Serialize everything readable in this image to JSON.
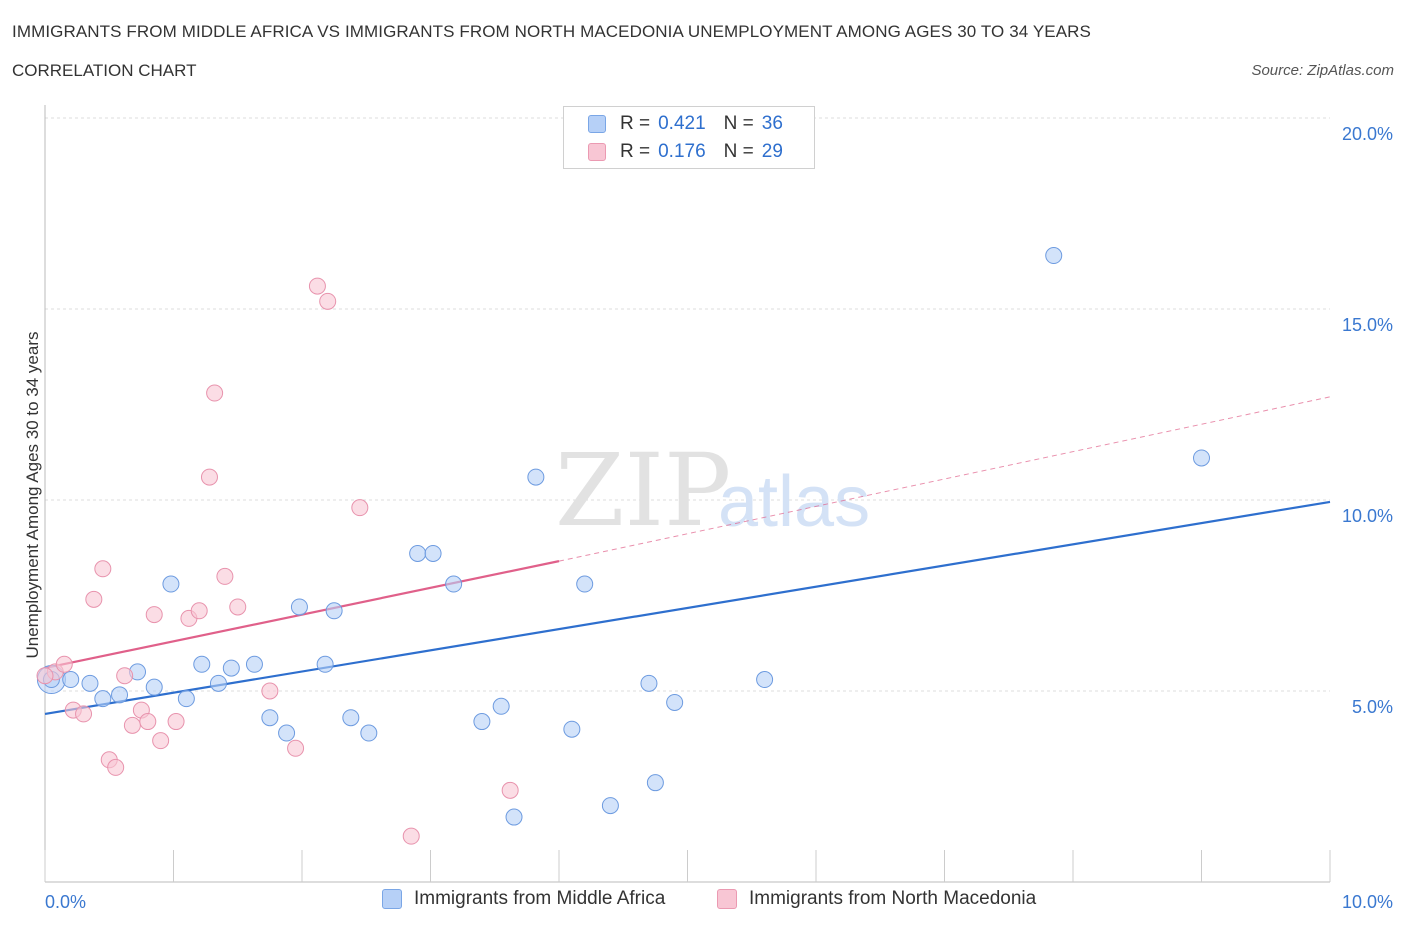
{
  "header": {
    "title": "IMMIGRANTS FROM MIDDLE AFRICA VS IMMIGRANTS FROM NORTH MACEDONIA UNEMPLOYMENT AMONG AGES 30 TO 34 YEARS",
    "subtitle": "CORRELATION CHART",
    "source": "Source: ZipAtlas.com"
  },
  "watermark": {
    "zip": "ZIP",
    "atlas": "atlas"
  },
  "legend": {
    "r_label": "R =",
    "n_label": "N =",
    "blue": {
      "r": "0.421",
      "n": "36"
    },
    "pink": {
      "r": "0.176",
      "n": "29"
    }
  },
  "colors": {
    "blue_fill": "#b6d0f7",
    "blue_stroke": "#6d9be0",
    "blue_line": "#2e6fce",
    "pink_fill": "#f8c6d4",
    "pink_stroke": "#e893ad",
    "pink_line": "#e0608a",
    "grid": "#dddddd",
    "axis_text": "#3a78d0"
  },
  "chart_data": {
    "type": "scatter",
    "title": "IMMIGRANTS FROM MIDDLE AFRICA VS IMMIGRANTS FROM NORTH MACEDONIA UNEMPLOYMENT AMONG AGES 30 TO 34 YEARS",
    "xlabel": "",
    "ylabel": "Unemployment Among Ages 30 to 34 years",
    "xlim": [
      0,
      10
    ],
    "ylim": [
      0,
      20
    ],
    "x_tick_labels": [
      "0.0%",
      "10.0%"
    ],
    "y_ticks": [
      5,
      10,
      15,
      20
    ],
    "y_tick_labels": [
      "5.0%",
      "10.0%",
      "15.0%",
      "20.0%"
    ],
    "legend_position": "top-center",
    "series": [
      {
        "name": "Immigrants from Middle Africa",
        "color": "blue",
        "r": 0.421,
        "n": 36,
        "trend": {
          "x": [
            0,
            10
          ],
          "y": [
            4.4,
            9.95
          ]
        },
        "points": [
          [
            0.05,
            5.3
          ],
          [
            0.2,
            5.3
          ],
          [
            0.35,
            5.2
          ],
          [
            0.45,
            4.8
          ],
          [
            0.58,
            4.9
          ],
          [
            0.72,
            5.5
          ],
          [
            0.85,
            5.1
          ],
          [
            0.98,
            7.8
          ],
          [
            1.1,
            4.8
          ],
          [
            1.22,
            5.7
          ],
          [
            1.35,
            5.2
          ],
          [
            1.45,
            5.6
          ],
          [
            1.63,
            5.7
          ],
          [
            1.75,
            4.3
          ],
          [
            1.88,
            3.9
          ],
          [
            1.98,
            7.2
          ],
          [
            2.18,
            5.7
          ],
          [
            2.25,
            7.1
          ],
          [
            2.38,
            4.3
          ],
          [
            2.52,
            3.9
          ],
          [
            2.9,
            8.6
          ],
          [
            3.02,
            8.6
          ],
          [
            3.18,
            7.8
          ],
          [
            3.4,
            4.2
          ],
          [
            3.55,
            4.6
          ],
          [
            3.65,
            1.7
          ],
          [
            3.82,
            10.6
          ],
          [
            4.1,
            4.0
          ],
          [
            4.2,
            7.8
          ],
          [
            4.4,
            2.0
          ],
          [
            4.7,
            5.2
          ],
          [
            4.75,
            2.6
          ],
          [
            4.9,
            4.7
          ],
          [
            5.6,
            5.3
          ],
          [
            7.85,
            16.4
          ],
          [
            9.0,
            11.1
          ]
        ]
      },
      {
        "name": "Immigrants from North Macedonia",
        "color": "pink",
        "r": 0.176,
        "n": 29,
        "trend": {
          "x": [
            0,
            4.0
          ],
          "y": [
            5.6,
            8.4
          ]
        },
        "trend_extension": {
          "x": [
            4.0,
            10
          ],
          "y": [
            8.4,
            12.7
          ]
        },
        "points": [
          [
            0.08,
            5.5
          ],
          [
            0.15,
            5.7
          ],
          [
            0.22,
            4.5
          ],
          [
            0.3,
            4.4
          ],
          [
            0.38,
            7.4
          ],
          [
            0.45,
            8.2
          ],
          [
            0.5,
            3.2
          ],
          [
            0.55,
            3.0
          ],
          [
            0.62,
            5.4
          ],
          [
            0.68,
            4.1
          ],
          [
            0.75,
            4.5
          ],
          [
            0.8,
            4.2
          ],
          [
            0.85,
            7.0
          ],
          [
            0.9,
            3.7
          ],
          [
            1.02,
            4.2
          ],
          [
            1.12,
            6.9
          ],
          [
            1.2,
            7.1
          ],
          [
            1.28,
            10.6
          ],
          [
            1.32,
            12.8
          ],
          [
            1.4,
            8.0
          ],
          [
            1.5,
            7.2
          ],
          [
            1.75,
            5.0
          ],
          [
            1.95,
            3.5
          ],
          [
            2.12,
            15.6
          ],
          [
            2.2,
            15.2
          ],
          [
            2.45,
            9.8
          ],
          [
            2.85,
            1.2
          ],
          [
            3.62,
            2.4
          ],
          [
            0.0,
            5.4
          ]
        ]
      }
    ]
  },
  "bottom_legend": {
    "blue_label": "Immigrants from Middle Africa",
    "pink_label": "Immigrants from North Macedonia"
  }
}
